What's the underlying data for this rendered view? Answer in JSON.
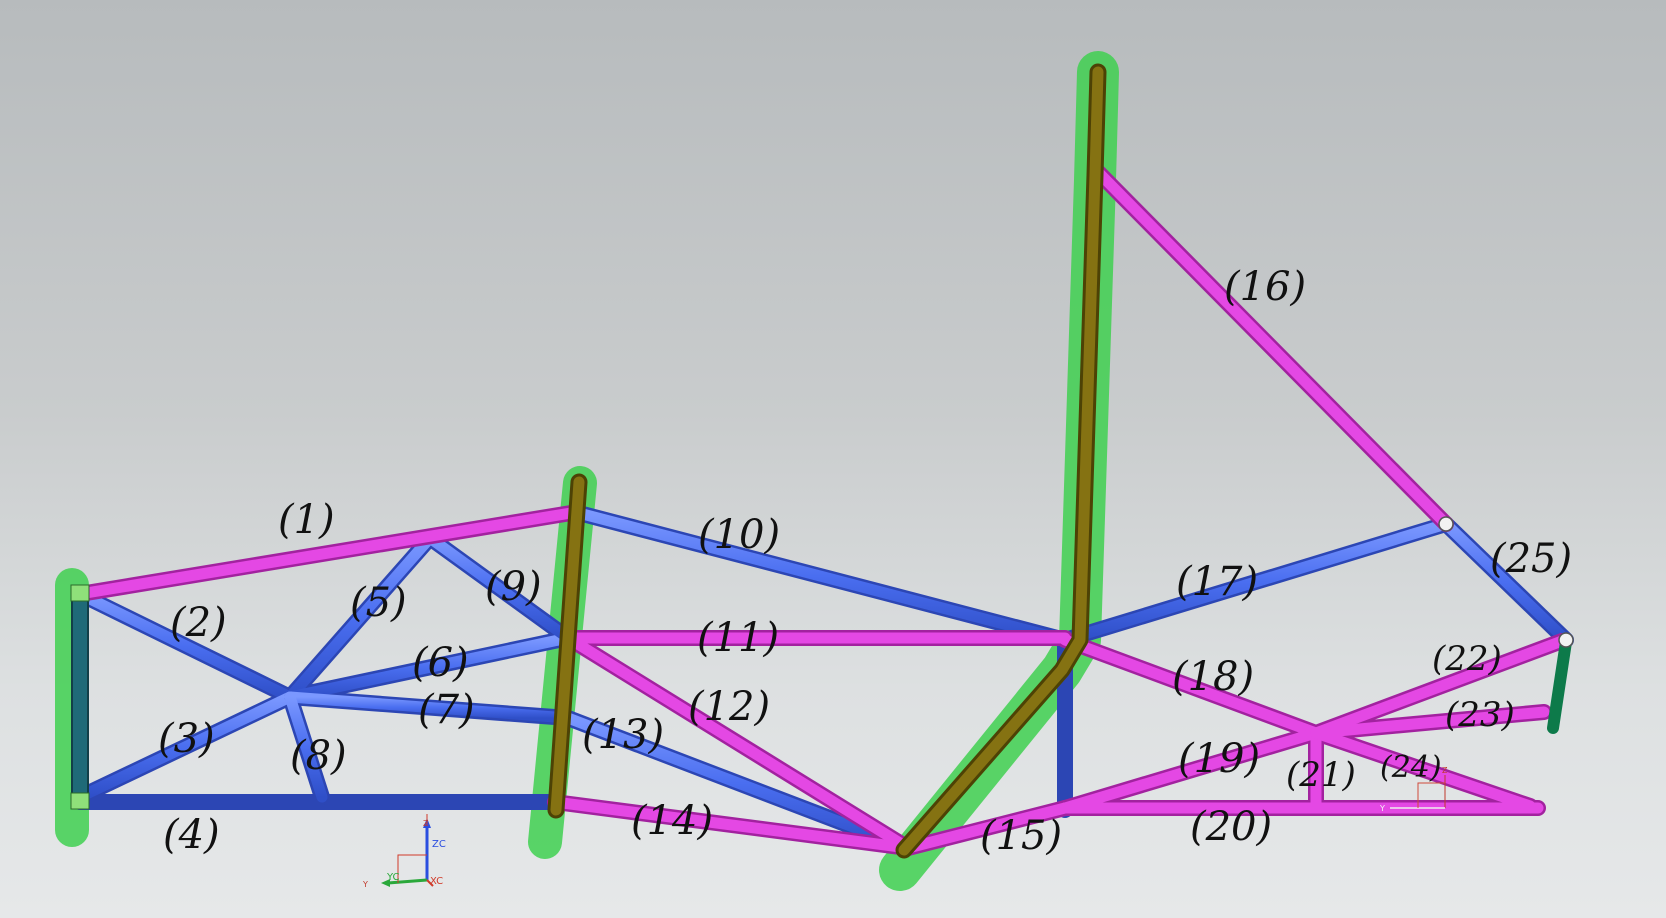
{
  "colors": {
    "blue_tube": "#4a6ef0",
    "magenta_tube": "#e03fe0",
    "olive_tube": "#7a6a10",
    "highlight": "#3fd050",
    "teal_tube": "#1f6a78",
    "green_tube": "#0d7a4a"
  },
  "member_labels": {
    "m1": "(1)",
    "m2": "(2)",
    "m3": "(3)",
    "m4": "(4)",
    "m5": "(5)",
    "m6": "(6)",
    "m7": "(7)",
    "m8": "(8)",
    "m9": "(9)",
    "m10": "(10)",
    "m11": "(11)",
    "m12": "(12)",
    "m13": "(13)",
    "m14": "(14)",
    "m15": "(15)",
    "m16": "(16)",
    "m17": "(17)",
    "m18": "(18)",
    "m19": "(19)",
    "m20": "(20)",
    "m21": "(21)",
    "m22": "(22)",
    "m23": "(23)",
    "m24": "(24)",
    "m25": "(25)"
  },
  "triad_main": {
    "z": "Z",
    "zc": "ZC",
    "y": "Y",
    "yc": "YC",
    "xc": "XC"
  },
  "triad_small": {
    "z": "Z",
    "y": "Y"
  }
}
